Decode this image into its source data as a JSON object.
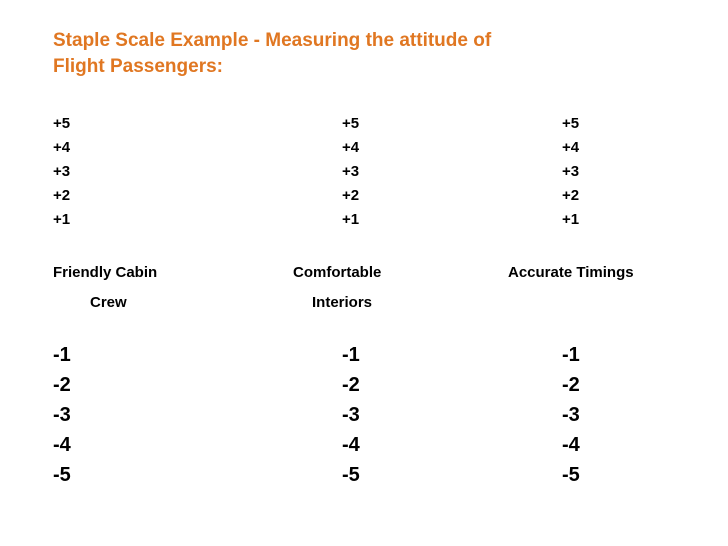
{
  "title_line1": "Staple Scale Example -  Measuring the attitude of",
  "title_line2": "Flight Passengers:",
  "title_color": "#e07722",
  "scales": [
    {
      "positive": [
        "+5",
        "+4",
        "+3",
        "+2",
        "+1"
      ],
      "attribute_line1": "Friendly Cabin",
      "attribute_line2": "Crew",
      "negative": [
        "-1",
        "-2",
        "-3",
        "-4",
        "-5"
      ]
    },
    {
      "positive": [
        "+5",
        "+4",
        "+3",
        "+2",
        "+1"
      ],
      "attribute_line1": "Comfortable",
      "attribute_line2": "Interiors",
      "negative": [
        "-1",
        "-2",
        "-3",
        "-4",
        "-5"
      ]
    },
    {
      "positive": [
        "+5",
        "+4",
        "+3",
        "+2",
        "+1"
      ],
      "attribute_line1": "Accurate Timings",
      "attribute_line2": "",
      "negative": [
        "-1",
        "-2",
        "-3",
        "-4",
        "-5"
      ]
    }
  ]
}
